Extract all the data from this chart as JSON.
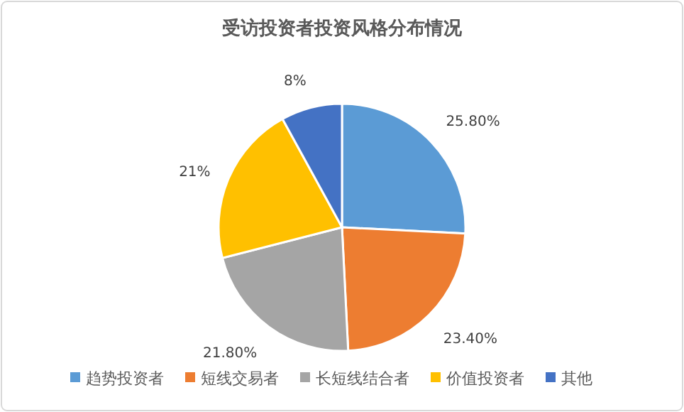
{
  "chart_data": {
    "type": "pie",
    "title": "受访投资者投资风格分布情况",
    "categories": [
      "趋势投资者",
      "短线交易者",
      "长短线结合者",
      "价值投资者",
      "其他"
    ],
    "values": [
      25.8,
      23.4,
      21.8,
      21,
      8
    ],
    "value_labels": [
      "25.80%",
      "23.40%",
      "21.80%",
      "21%",
      "8%"
    ],
    "colors": [
      "#5b9bd5",
      "#ed7d31",
      "#a5a5a5",
      "#ffc000",
      "#4472c4"
    ],
    "legend": "bottom"
  }
}
